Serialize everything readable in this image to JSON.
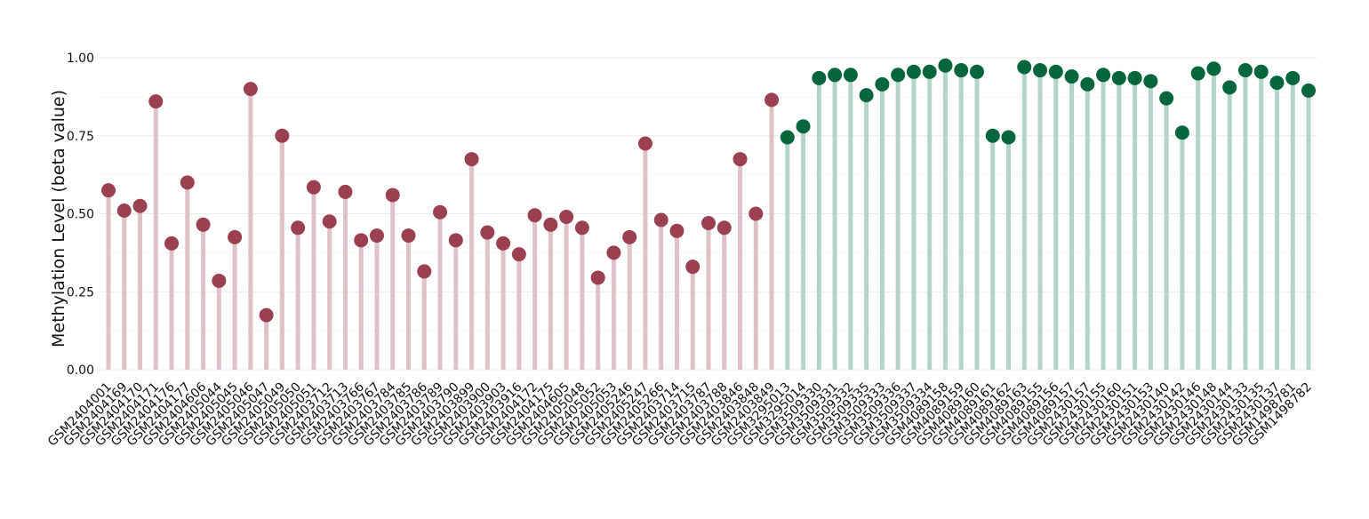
{
  "chart_data": {
    "type": "lollipop",
    "ylabel": "Methylation Level (beta value)",
    "categories": [
      "GSM2404001",
      "GSM2404169",
      "GSM2404170",
      "GSM2404171",
      "GSM2404176",
      "GSM2404177",
      "GSM2404606",
      "GSM2405044",
      "GSM2405045",
      "GSM2405046",
      "GSM2405047",
      "GSM2405049",
      "GSM2405050",
      "GSM2405051",
      "GSM2403712",
      "GSM2403713",
      "GSM2403766",
      "GSM2403767",
      "GSM2403784",
      "GSM2403785",
      "GSM2403786",
      "GSM2403789",
      "GSM2403790",
      "GSM2403899",
      "GSM2403900",
      "GSM2403903",
      "GSM2403916",
      "GSM2404172",
      "GSM2404175",
      "GSM2404605",
      "GSM2405048",
      "GSM2405052",
      "GSM2405053",
      "GSM2405246",
      "GSM2405247",
      "GSM2405266",
      "GSM2403714",
      "GSM2403715",
      "GSM2403787",
      "GSM2403788",
      "GSM2403846",
      "GSM2403848",
      "GSM2403849",
      "GSM3295013",
      "GSM3295014",
      "GSM3509330",
      "GSM3509331",
      "GSM3509332",
      "GSM3509335",
      "GSM3509333",
      "GSM3509336",
      "GSM3509337",
      "GSM3509334",
      "GSM4089158",
      "GSM4089159",
      "GSM4089160",
      "GSM4089161",
      "GSM4089162",
      "GSM4089163",
      "GSM4089155",
      "GSM4089156",
      "GSM4089157",
      "GSM2430157",
      "GSM2430155",
      "GSM2430160",
      "GSM2430151",
      "GSM2430153",
      "GSM2430140",
      "GSM2430142",
      "GSM2430146",
      "GSM2430148",
      "GSM2430144",
      "GSM2430133",
      "GSM2430135",
      "GSM2430137",
      "GSM1498781",
      "GSM1498782"
    ],
    "values": [
      0.575,
      0.51,
      0.525,
      0.86,
      0.405,
      0.6,
      0.465,
      0.285,
      0.425,
      0.9,
      0.175,
      0.75,
      0.455,
      0.585,
      0.475,
      0.57,
      0.415,
      0.43,
      0.56,
      0.43,
      0.315,
      0.505,
      0.415,
      0.675,
      0.44,
      0.405,
      0.37,
      0.495,
      0.465,
      0.49,
      0.455,
      0.295,
      0.375,
      0.425,
      0.725,
      0.48,
      0.445,
      0.33,
      0.47,
      0.455,
      0.675,
      0.5,
      0.865,
      0.745,
      0.78,
      0.935,
      0.945,
      0.945,
      0.88,
      0.915,
      0.945,
      0.955,
      0.955,
      0.975,
      0.96,
      0.955,
      0.75,
      0.745,
      0.97,
      0.96,
      0.955,
      0.94,
      0.915,
      0.945,
      0.935,
      0.935,
      0.925,
      0.87,
      0.76,
      0.95,
      0.965,
      0.905,
      0.96,
      0.955,
      0.92,
      0.935,
      0.895
    ],
    "group_colors": [
      {
        "count": 43,
        "color": "#9b4050",
        "stem": "#dfc2c8"
      },
      {
        "count": 34,
        "color": "#05653c",
        "stem": "#b3d4c8"
      }
    ],
    "ylim": [
      0,
      1.0
    ],
    "yticks": [
      {
        "value": 0,
        "label": "0.00"
      },
      {
        "value": 0.25,
        "label": "0.25"
      },
      {
        "value": 0.5,
        "label": "0.50"
      },
      {
        "value": 0.75,
        "label": "0.75"
      },
      {
        "value": 1.0,
        "label": "1.00"
      }
    ],
    "minor_yticks": [
      0.125,
      0.375,
      0.625,
      0.875
    ],
    "grid": true
  }
}
